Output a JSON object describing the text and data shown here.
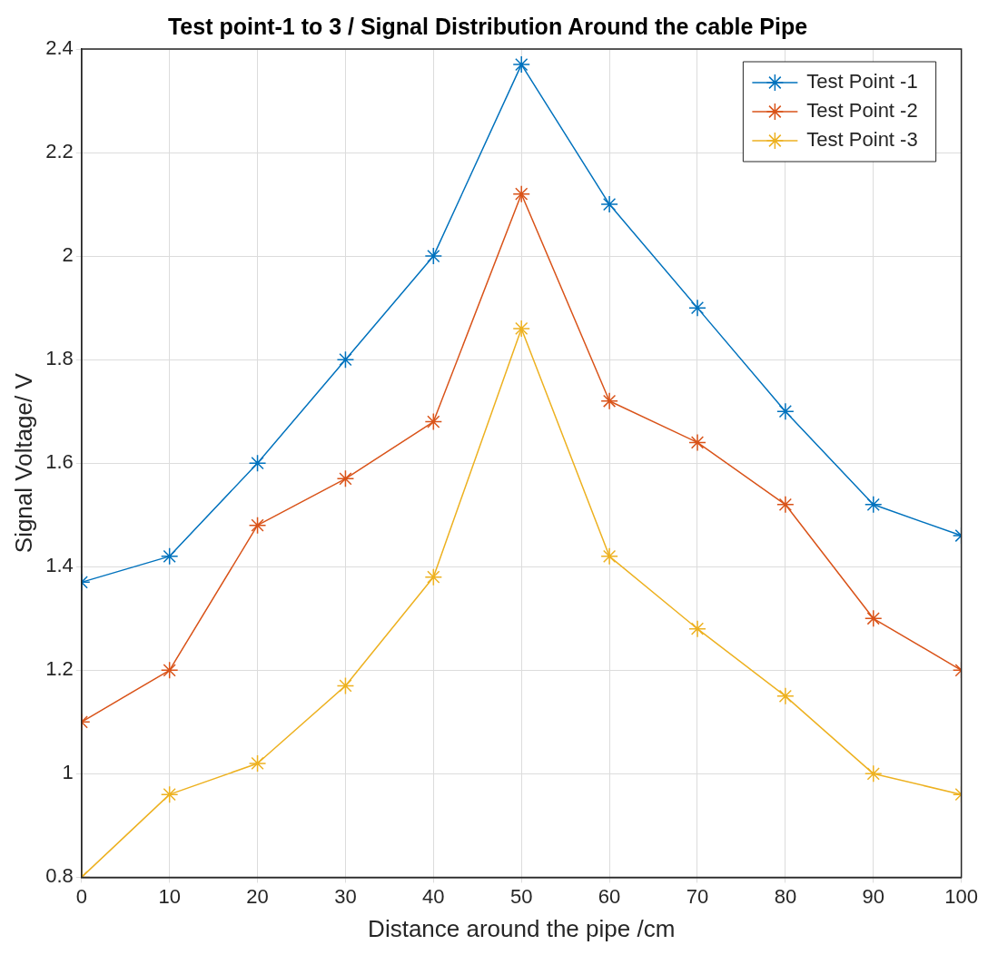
{
  "chart_data": {
    "type": "line",
    "title": "Test point-1 to 3 / Signal Distribution Around the cable Pipe",
    "xlabel": "Distance around the pipe /cm",
    "ylabel": "Signal Voltage/ V",
    "x": [
      0,
      10,
      20,
      30,
      40,
      50,
      60,
      70,
      80,
      90,
      100
    ],
    "series": [
      {
        "name": "Test Point -1",
        "color": "#0072bd",
        "values": [
          1.37,
          1.42,
          1.6,
          1.8,
          2.0,
          2.37,
          2.1,
          1.9,
          1.7,
          1.52,
          1.46
        ]
      },
      {
        "name": "Test Point -2",
        "color": "#d95319",
        "values": [
          1.1,
          1.2,
          1.48,
          1.57,
          1.68,
          2.12,
          1.72,
          1.64,
          1.52,
          1.3,
          1.2
        ]
      },
      {
        "name": "Test Point -3",
        "color": "#edb120",
        "values": [
          0.8,
          0.96,
          1.02,
          1.17,
          1.38,
          1.86,
          1.42,
          1.28,
          1.15,
          1.0,
          0.96
        ]
      }
    ],
    "xlim": [
      0,
      100
    ],
    "xticks": [
      0,
      10,
      20,
      30,
      40,
      50,
      60,
      70,
      80,
      90,
      100
    ],
    "ylim": [
      0.8,
      2.4
    ],
    "yticks": [
      0.8,
      1,
      1.2,
      1.4,
      1.6,
      1.8,
      2,
      2.2,
      2.4
    ],
    "grid": true,
    "legend": "top right",
    "marker": "cross",
    "line_style": "solid"
  }
}
